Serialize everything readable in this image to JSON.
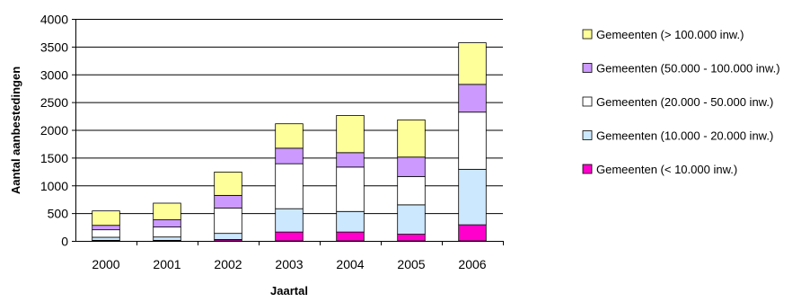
{
  "chart_data": {
    "type": "bar",
    "stacked": true,
    "title": "",
    "xlabel": "Jaartal",
    "ylabel": "Aantal aanbestedingen",
    "ylim": [
      0,
      4000
    ],
    "yticks": [
      0,
      500,
      1000,
      1500,
      2000,
      2500,
      3000,
      3500,
      4000
    ],
    "grid": true,
    "legend_position": "right",
    "categories": [
      "2000",
      "2001",
      "2002",
      "2003",
      "2004",
      "2005",
      "2006"
    ],
    "series": [
      {
        "name": "Gemeenten (< 10.000 inw.)",
        "color": "#ff00cc",
        "values": [
          10,
          10,
          25,
          160,
          160,
          120,
          290
        ]
      },
      {
        "name": "Gemeenten (10.000 - 20.000 inw.)",
        "color": "#cce8ff",
        "values": [
          55,
          60,
          110,
          420,
          370,
          530,
          1000
        ]
      },
      {
        "name": "Gemeenten (20.000 - 50.000 inw.)",
        "color": "#ffffff",
        "values": [
          135,
          180,
          455,
          810,
          800,
          510,
          1030
        ]
      },
      {
        "name": "Gemeenten (50.000 - 100.000 inw.)",
        "color": "#cc99ff",
        "values": [
          80,
          130,
          230,
          280,
          260,
          350,
          500
        ]
      },
      {
        "name": "Gemeenten (> 100.000 inw.)",
        "color": "#ffff99",
        "values": [
          260,
          300,
          420,
          440,
          670,
          670,
          750
        ]
      }
    ]
  }
}
